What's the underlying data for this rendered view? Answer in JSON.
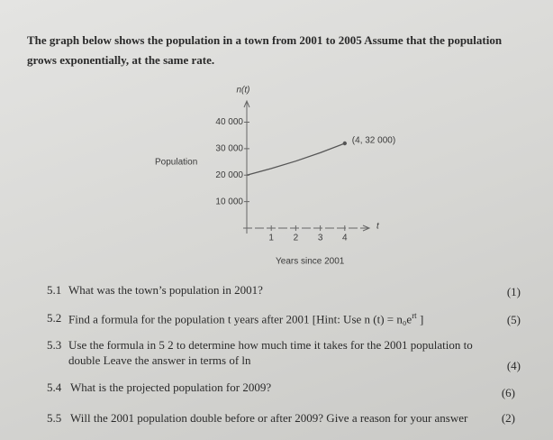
{
  "intro": [
    "The graph below shows the population in a town from 2001 to 2005  Assume that the population",
    "grows exponentially, at the same rate."
  ],
  "chart_data": {
    "type": "line",
    "y_label": "n(t)",
    "x_label": "t",
    "y_title": "Population",
    "x_title": "Years since 2001",
    "x": [
      0,
      1,
      2,
      3,
      4
    ],
    "series": [
      {
        "color": "#555555",
        "values": [
          20000,
          22494,
          25298,
          28453,
          32000
        ]
      }
    ],
    "xlim": [
      0,
      5
    ],
    "ylim": [
      0,
      48000
    ],
    "xticks": [
      1,
      2,
      3,
      4
    ],
    "yticks": [
      {
        "value": 10000,
        "label": "10 000"
      },
      {
        "value": 20000,
        "label": "20 000"
      },
      {
        "value": 30000,
        "label": "30 000"
      },
      {
        "value": 40000,
        "label": "40 000"
      }
    ],
    "annotation": "(4, 32 000)"
  },
  "questions": [
    {
      "number": "5.1",
      "lines": [
        "What was the town’s population in 2001?"
      ],
      "marks": "(1)"
    },
    {
      "number": "5.2",
      "lines": [
        "Find a formula for the population t years after 2001  [Hint: Use n (t) = n₀e"
      ],
      "sup": "rt",
      "close": "]",
      "marks": "(5)"
    },
    {
      "number": "5.3",
      "lines": [
        "Use the formula in 5 2 to determine how much time it takes for the 2001 population to",
        "double  Leave the answer in terms of ln"
      ],
      "marks": "(4)"
    },
    {
      "number": "5.4",
      "lines": [
        "What is the projected population for 2009?"
      ],
      "marks": "(6)"
    },
    {
      "number": "5.5",
      "lines": [
        "Will the 2001 population double before or after 2009?  Give a reason for your answer"
      ],
      "marks": "(2)"
    }
  ]
}
